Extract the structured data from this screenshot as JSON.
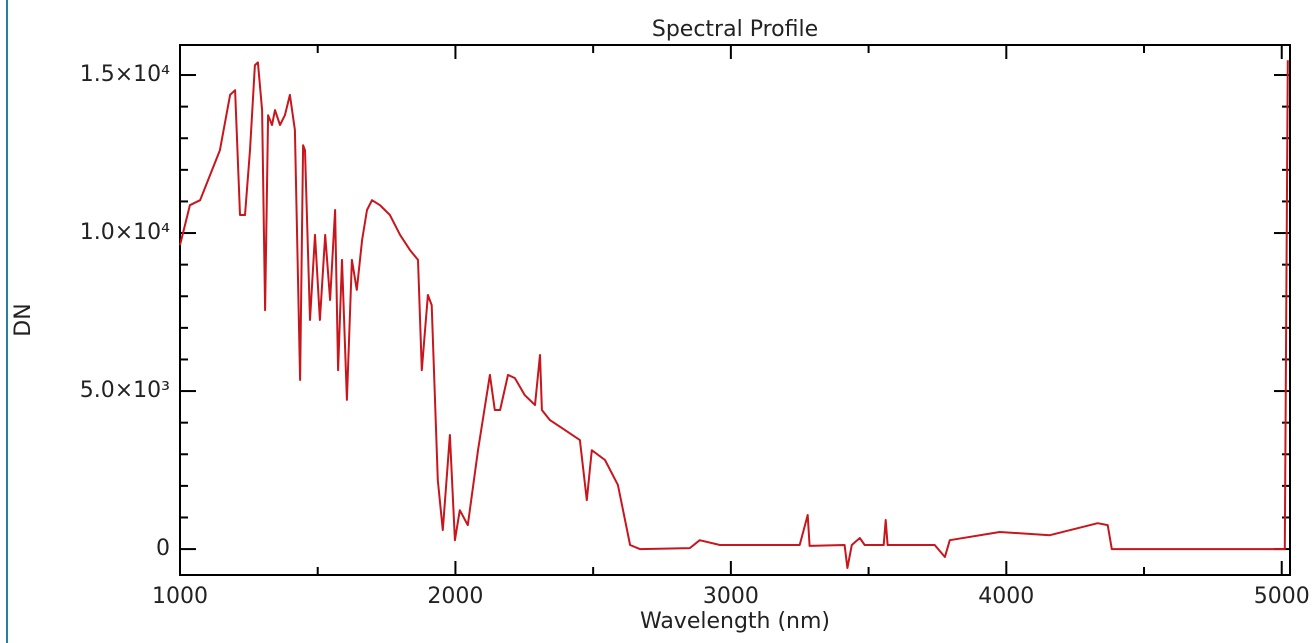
{
  "chart_data": {
    "type": "line",
    "title": "Spectral Profile",
    "x_label": "Wavelength (nm)",
    "y_label": "DN",
    "color": "#c8161d",
    "x": [
      1000,
      1036,
      1073,
      1109,
      1145,
      1182,
      1200,
      1218,
      1236,
      1254,
      1272,
      1283,
      1298,
      1309,
      1320,
      1334,
      1345,
      1363,
      1381,
      1399,
      1417,
      1436,
      1447,
      1454,
      1472,
      1490,
      1508,
      1527,
      1545,
      1563,
      1574,
      1588,
      1606,
      1624,
      1642,
      1661,
      1679,
      1697,
      1726,
      1762,
      1799,
      1835,
      1864,
      1878,
      1900,
      1914,
      1936,
      1954,
      1980,
      1998,
      2016,
      2045,
      2082,
      2125,
      2143,
      2162,
      2191,
      2216,
      2252,
      2289,
      2307,
      2314,
      2343,
      2397,
      2452,
      2477,
      2495,
      2543,
      2590,
      2634,
      2670,
      2851,
      2887,
      2960,
      3250,
      3279,
      3286,
      3413,
      3423,
      3439,
      3468,
      3486,
      3555,
      3562,
      3569,
      3740,
      3777,
      3795,
      3976,
      4158,
      4332,
      4368,
      4383,
      5011,
      5022
    ],
    "values": [
      9620,
      10880,
      11040,
      11830,
      12620,
      14370,
      14520,
      10570,
      10570,
      12620,
      15310,
      15400,
      13890,
      7560,
      13730,
      13420,
      13890,
      13420,
      13730,
      14370,
      13260,
      5350,
      12780,
      12620,
      7250,
      9940,
      7250,
      9940,
      7880,
      10730,
      5660,
      9150,
      4720,
      9150,
      8200,
      9780,
      10730,
      11040,
      10880,
      10570,
      9940,
      9460,
      9150,
      5660,
      8040,
      7720,
      2180,
      600,
      3610,
      280,
      1230,
      760,
      3130,
      5510,
      4400,
      4400,
      5510,
      5410,
      4870,
      4560,
      6140,
      4400,
      4080,
      3770,
      3450,
      1550,
      3130,
      2820,
      2030,
      130,
      0,
      30,
      280,
      130,
      130,
      1080,
      100,
      130,
      -600,
      130,
      350,
      130,
      130,
      920,
      130,
      130,
      -250,
      280,
      540,
      440,
      820,
      760,
      0,
      0,
      15470
    ],
    "xlim": [
      1000,
      5030
    ],
    "ylim": [
      -820,
      15950
    ],
    "xticks": [
      1000,
      2000,
      3000,
      4000,
      5000
    ],
    "yticks": [
      0,
      {
        "value": 5000,
        "label": "5.0×10³"
      },
      {
        "value": 10000,
        "label": "1.0×10⁴"
      },
      {
        "value": 15000,
        "label": "1.5×10⁴"
      }
    ],
    "xminor": [
      1500,
      2500,
      3500,
      4500
    ],
    "yminor": [
      1000,
      2000,
      3000,
      4000,
      6000,
      7000,
      8000,
      9000,
      11000,
      12000,
      13000,
      14000
    ]
  }
}
